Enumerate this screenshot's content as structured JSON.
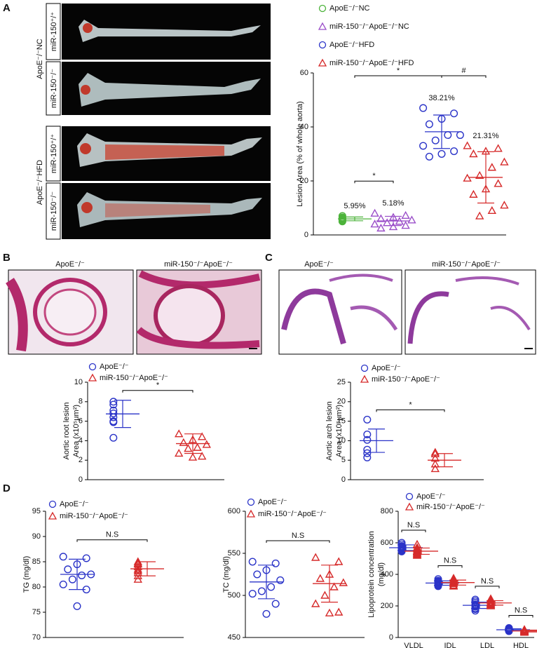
{
  "figure": {
    "panels": [
      "A",
      "B",
      "C",
      "D"
    ],
    "a_images": {
      "group_labels": [
        "ApoE⁻/⁻NC",
        "ApoE⁻/⁻HFD"
      ],
      "row_labels": [
        "miR-150⁺/⁺",
        "miR-150⁻/⁻",
        "miR-150⁺/⁺",
        "miR-150⁻/⁻"
      ]
    },
    "b_images": [
      "ApoE⁻/⁻",
      "miR-150⁻/⁻ApoE⁻/⁻"
    ],
    "c_images": [
      "ApoE⁻/⁻",
      "miR-150⁻/⁻ApoE⁻/⁻"
    ]
  },
  "chart_data": [
    {
      "type": "strip",
      "ylabel": [
        "Lesion Area (% of whole aorta)"
      ],
      "ylim": [
        0,
        60
      ],
      "yticks": [
        0,
        20,
        40,
        60
      ],
      "series": [
        {
          "name": "ApoE⁻/⁻NC",
          "color": "#4cb33a",
          "marker": "circle",
          "values": [
            7.0,
            6.5,
            6.2,
            6.0,
            5.8,
            5.5,
            5.3,
            5.0
          ],
          "mean": 5.95,
          "mean_label": "5.95%",
          "sd": 0.7
        },
        {
          "name": "miR-150⁻/⁻ApoE⁻/⁻NC",
          "color": "#9b4fc9",
          "marker": "triangle",
          "values": [
            8.0,
            7.2,
            6.5,
            6.0,
            5.5,
            5.0,
            4.5,
            4.0,
            3.5,
            3.0,
            2.5
          ],
          "mean": 5.18,
          "mean_label": "5.18%",
          "sd": 1.7
        },
        {
          "name": "ApoE⁻/⁻HFD",
          "color": "#2a33c8",
          "marker": "circle",
          "values": [
            47,
            45,
            43,
            41,
            37,
            37,
            35,
            33,
            31,
            30,
            29
          ],
          "mean": 38.21,
          "mean_label": "38.21%",
          "sd": 6.2
        },
        {
          "name": "miR-150⁻/⁻ApoE⁻/⁻HFD",
          "color": "#d62a2a",
          "marker": "triangle",
          "values": [
            33,
            32,
            31,
            30,
            27,
            25,
            22,
            21,
            19,
            17,
            15,
            11,
            9,
            7
          ],
          "mean": 21.31,
          "mean_label": "21.31%",
          "sd": 9.5
        }
      ],
      "comparisons": [
        {
          "pair": [
            0,
            1
          ],
          "label": "*"
        },
        {
          "pair": [
            0,
            2
          ],
          "label": "*"
        },
        {
          "pair": [
            2,
            3
          ],
          "label": "#"
        }
      ]
    },
    {
      "type": "strip",
      "ylabel": [
        "Aortic root lesion",
        "Area (x10⁵μm²)"
      ],
      "ylim": [
        0,
        10
      ],
      "yticks": [
        0,
        2,
        4,
        6,
        8,
        10
      ],
      "series": [
        {
          "name": "ApoE⁻/⁻",
          "color": "#2a33c8",
          "marker": "circle",
          "values": [
            8.0,
            7.7,
            7.1,
            6.8,
            6.4,
            6.0,
            5.9,
            4.3
          ],
          "mean": 6.75,
          "sd": 1.4
        },
        {
          "name": "miR-150⁻/⁻ApoE⁻/⁻",
          "color": "#d62a2a",
          "marker": "triangle",
          "values": [
            4.7,
            4.4,
            4.1,
            3.8,
            3.6,
            3.3,
            3.2,
            2.7,
            2.4,
            2.3
          ],
          "mean": 3.7,
          "sd": 1.0
        }
      ],
      "comparisons": [
        {
          "pair": [
            0,
            1
          ],
          "label": "*"
        }
      ]
    },
    {
      "type": "strip",
      "ylabel": [
        "Aortic arch lesion",
        "Area (x10⁵μm²)"
      ],
      "ylim": [
        0,
        25
      ],
      "yticks": [
        0,
        5,
        10,
        15,
        20,
        25
      ],
      "series": [
        {
          "name": "ApoE⁻/⁻",
          "color": "#2a33c8",
          "marker": "circle",
          "values": [
            15.4,
            11.6,
            10.2,
            7.7,
            6.8,
            5.7
          ],
          "mean": 10,
          "sd": 3
        },
        {
          "name": "miR-150⁻/⁻ApoE⁻/⁻",
          "color": "#d62a2a",
          "marker": "triangle",
          "values": [
            7.0,
            6.6,
            5.5,
            4.0,
            2.8
          ],
          "mean": 5,
          "sd": 1.7
        }
      ],
      "comparisons": [
        {
          "pair": [
            0,
            1
          ],
          "label": "*"
        }
      ]
    },
    {
      "type": "strip",
      "ylabel": [
        "TG (mg/dl)"
      ],
      "ylim": [
        70,
        95
      ],
      "yticks": [
        70,
        75,
        80,
        85,
        90,
        95
      ],
      "series": [
        {
          "name": "ApoE⁻/⁻",
          "color": "#2a33c8",
          "marker": "circle",
          "values": [
            86,
            85.7,
            84.5,
            83.5,
            82.5,
            82.3,
            81.5,
            80.5,
            79.5,
            76.2
          ],
          "mean": 82.5,
          "sd": 3
        },
        {
          "name": "miR-150⁻/⁻ApoE⁻/⁻",
          "color": "#d62a2a",
          "marker": "triangle",
          "values": [
            85,
            84.7,
            84.5,
            84,
            83.5,
            83.2,
            82.8,
            82.2,
            81.5
          ],
          "mean": 83.6,
          "sd": 1.4
        }
      ],
      "comparisons": [
        {
          "pair": [
            0,
            1
          ],
          "label": "N.S"
        }
      ]
    },
    {
      "type": "strip",
      "ylabel": [
        "TC (mg/dl)"
      ],
      "ylim": [
        450,
        600
      ],
      "yticks": [
        450,
        500,
        550,
        600
      ],
      "series": [
        {
          "name": "ApoE⁻/⁻",
          "color": "#2a33c8",
          "marker": "circle",
          "values": [
            540,
            538,
            530,
            525,
            518,
            510,
            505,
            502,
            490,
            478
          ],
          "mean": 516,
          "sd": 20
        },
        {
          "name": "miR-150⁻/⁻ApoE⁻/⁻",
          "color": "#d62a2a",
          "marker": "triangle",
          "values": [
            545,
            540,
            525,
            520,
            515,
            510,
            500,
            490,
            480,
            479
          ],
          "mean": 514,
          "sd": 22
        }
      ],
      "comparisons": [
        {
          "pair": [
            0,
            1
          ],
          "label": "N.S"
        }
      ]
    },
    {
      "type": "grouped-strip",
      "ylabel": [
        "Lipoprotein concentration",
        "(mg/dl)"
      ],
      "ylim": [
        0,
        800
      ],
      "yticks": [
        0,
        200,
        400,
        600,
        800
      ],
      "categories": [
        "VLDL",
        "IDL",
        "LDL",
        "HDL"
      ],
      "series": [
        {
          "name": "ApoE⁻/⁻",
          "color": "#2a33c8",
          "marker": "circle",
          "values": [
            [
              600,
              590,
              580,
              575,
              570,
              565,
              560,
              555,
              550,
              545
            ],
            [
              370,
              360,
              355,
              350,
              345,
              340,
              335,
              330,
              325
            ],
            [
              240,
              230,
              220,
              210,
              205,
              200,
              195,
              185,
              180,
              170
            ],
            [
              60,
              55,
              52,
              50,
              48,
              45,
              42,
              40
            ]
          ],
          "mean": [
            569,
            345,
            204,
            49
          ],
          "sd": [
            18,
            14,
            20,
            6
          ]
        },
        {
          "name": "miR-150⁻/⁻ApoE⁻/⁻",
          "color": "#d62a2a",
          "marker": "triangle",
          "values": [
            [
              590,
              570,
              560,
              550,
              545,
              540,
              535,
              530,
              525,
              520
            ],
            [
              375,
              365,
              355,
              350,
              345,
              340,
              330,
              325
            ],
            [
              245,
              235,
              225,
              220,
              215,
              210,
              205,
              200
            ],
            [
              50,
              48,
              45,
              42,
              40,
              38,
              35,
              32
            ]
          ],
          "mean": [
            547,
            348,
            219,
            41
          ],
          "sd": [
            20,
            16,
            14,
            6
          ]
        }
      ],
      "comparisons": [
        {
          "category": 0,
          "label": "N.S"
        },
        {
          "category": 1,
          "label": "N.S"
        },
        {
          "category": 2,
          "label": "N.S"
        },
        {
          "category": 3,
          "label": "N.S"
        }
      ]
    }
  ]
}
